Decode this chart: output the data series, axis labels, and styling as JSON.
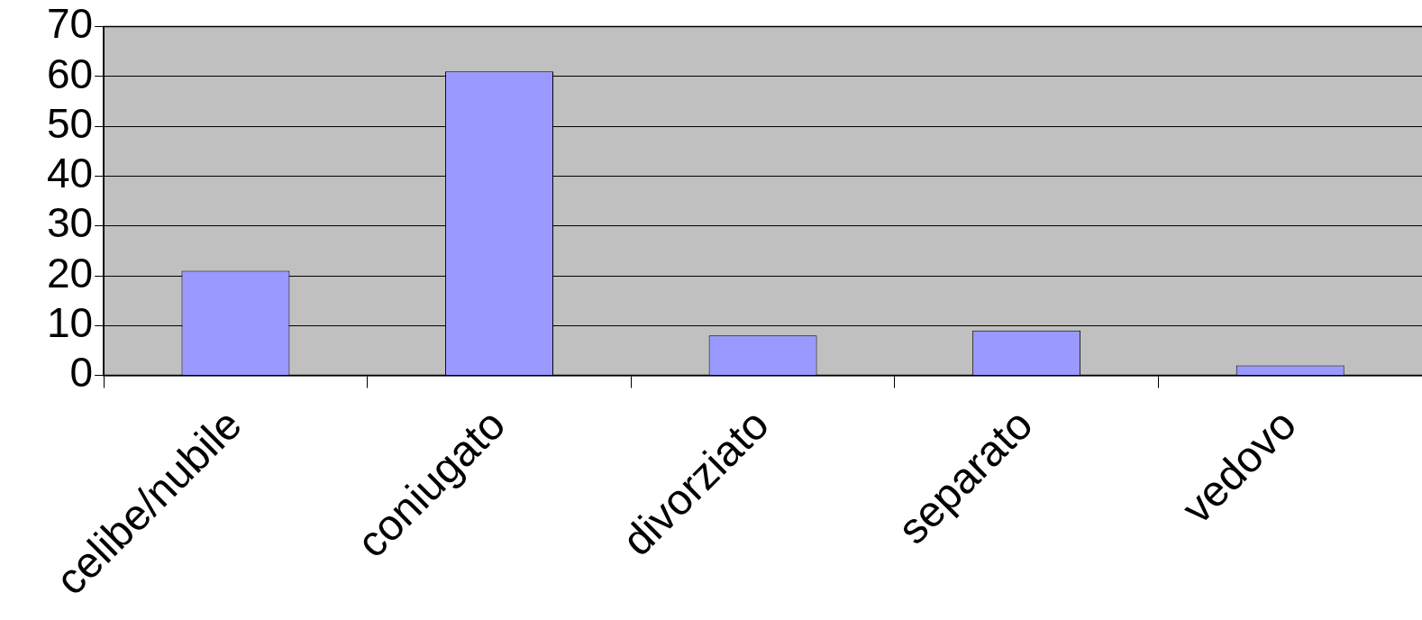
{
  "chart_data": {
    "type": "bar",
    "categories": [
      "celibe/nubile",
      "coniugato",
      "divorziato",
      "separato",
      "vedovo"
    ],
    "values": [
      21,
      61,
      8,
      9,
      2
    ],
    "color": "#9999ff",
    "ylim": [
      0,
      70
    ],
    "yticks": [
      0,
      10,
      20,
      30,
      40,
      50,
      60,
      70
    ],
    "grid": "y",
    "legend": false
  }
}
